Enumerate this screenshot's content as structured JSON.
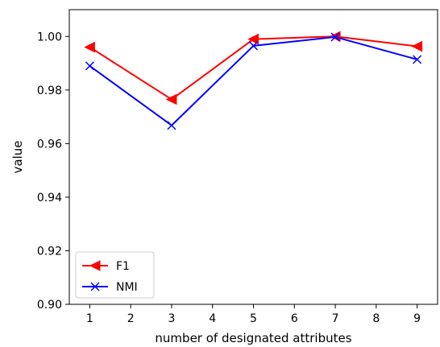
{
  "chart_data": {
    "type": "line",
    "xlabel": "number of designated attributes",
    "ylabel": "value",
    "xlim": [
      0.5,
      9.5
    ],
    "ylim": [
      0.9,
      1.01
    ],
    "xticks": [
      "1",
      "2",
      "3",
      "4",
      "5",
      "6",
      "7",
      "8",
      "9"
    ],
    "yticks": [
      "0.90",
      "0.92",
      "0.94",
      "0.96",
      "0.98",
      "1.00"
    ],
    "x": [
      1,
      3,
      5,
      7,
      9
    ],
    "series": [
      {
        "name": "F1",
        "values": [
          0.996,
          0.9765,
          0.999,
          1.0,
          0.9963
        ],
        "color": "#ff0000",
        "marker": "triangle-left"
      },
      {
        "name": "NMI",
        "values": [
          0.989,
          0.9668,
          0.9965,
          0.9998,
          0.9914
        ],
        "color": "#0000ff",
        "marker": "x"
      }
    ],
    "grid": false,
    "legend_position": "bottom-left"
  }
}
